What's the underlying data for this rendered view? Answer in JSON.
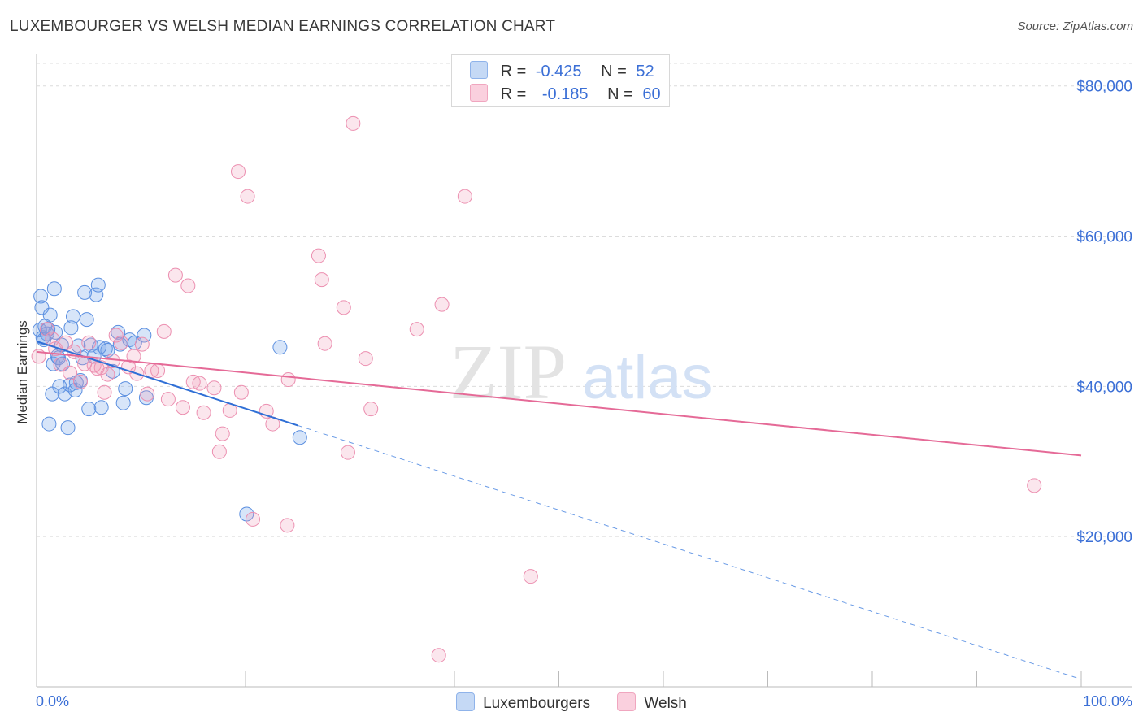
{
  "title": "LUXEMBOURGER VS WELSH MEDIAN EARNINGS CORRELATION CHART",
  "source": "Source: ZipAtlas.com",
  "watermark": {
    "zip": "ZIP",
    "atlas": "atlas"
  },
  "legend": {
    "rows": [
      {
        "r_label": "R =",
        "r_value": "-0.425",
        "n_label": "N =",
        "n_value": "52",
        "color": "#6fa0e8"
      },
      {
        "r_label": "R =",
        "r_value": "-0.185",
        "n_label": "N =",
        "n_value": "60",
        "color": "#f09ab6"
      }
    ]
  },
  "bottom_legend": [
    "Luxembourgers",
    "Welsh"
  ],
  "chart_data": {
    "type": "scatter",
    "title": "LUXEMBOURGER VS WELSH MEDIAN EARNINGS CORRELATION CHART",
    "ylabel": "Median Earnings",
    "xlabel": "",
    "x_tick_labels": [
      "0.0%",
      "100.0%"
    ],
    "y_tick_labels": [
      "$20,000",
      "$40,000",
      "$60,000",
      "$80,000"
    ],
    "xlim": [
      0,
      100
    ],
    "ylim": [
      0,
      83000
    ],
    "grid": true,
    "series": [
      {
        "name": "Luxembourgers",
        "color": "#6fa0e8",
        "trend": {
          "x": [
            0,
            25
          ],
          "y": [
            46000,
            34800
          ],
          "dashed_to": [
            100,
            1000
          ]
        },
        "points": [
          [
            0.3,
            47500
          ],
          [
            0.4,
            52000
          ],
          [
            0.5,
            50500
          ],
          [
            0.6,
            46500
          ],
          [
            0.8,
            48000
          ],
          [
            1.0,
            47000
          ],
          [
            1.2,
            35000
          ],
          [
            1.3,
            49500
          ],
          [
            1.5,
            39000
          ],
          [
            1.6,
            43000
          ],
          [
            1.7,
            53000
          ],
          [
            1.8,
            47200
          ],
          [
            2.0,
            44000
          ],
          [
            2.2,
            40000
          ],
          [
            2.4,
            45500
          ],
          [
            2.5,
            43000
          ],
          [
            2.7,
            39000
          ],
          [
            3.0,
            34500
          ],
          [
            3.2,
            40200
          ],
          [
            3.3,
            47800
          ],
          [
            3.5,
            49300
          ],
          [
            3.7,
            39500
          ],
          [
            4.0,
            45400
          ],
          [
            4.2,
            40800
          ],
          [
            4.4,
            43800
          ],
          [
            4.6,
            52500
          ],
          [
            4.8,
            48900
          ],
          [
            5.0,
            37000
          ],
          [
            5.2,
            45500
          ],
          [
            5.5,
            44000
          ],
          [
            5.7,
            52200
          ],
          [
            5.9,
            53500
          ],
          [
            6.2,
            37200
          ],
          [
            6.6,
            45000
          ],
          [
            6.8,
            44800
          ],
          [
            7.3,
            42000
          ],
          [
            7.8,
            47200
          ],
          [
            8.0,
            45600
          ],
          [
            8.3,
            37800
          ],
          [
            8.5,
            39700
          ],
          [
            8.9,
            46200
          ],
          [
            9.4,
            45800
          ],
          [
            10.3,
            46800
          ],
          [
            10.5,
            38500
          ],
          [
            20.1,
            23000
          ],
          [
            23.3,
            45200
          ],
          [
            25.2,
            33200
          ],
          [
            0.7,
            46200
          ],
          [
            1.1,
            47600
          ],
          [
            2.1,
            43800
          ],
          [
            3.8,
            40500
          ],
          [
            6.0,
            45200
          ]
        ]
      },
      {
        "name": "Welsh",
        "color": "#f09ab6",
        "trend": {
          "x": [
            0,
            100
          ],
          "y": [
            44600,
            30800
          ]
        },
        "points": [
          [
            0.2,
            44000
          ],
          [
            1.0,
            47600
          ],
          [
            1.5,
            46300
          ],
          [
            1.8,
            45000
          ],
          [
            2.3,
            42900
          ],
          [
            2.8,
            45800
          ],
          [
            3.2,
            41800
          ],
          [
            3.6,
            44600
          ],
          [
            4.2,
            40600
          ],
          [
            4.6,
            43000
          ],
          [
            5.0,
            45800
          ],
          [
            5.5,
            42800
          ],
          [
            6.2,
            42500
          ],
          [
            6.5,
            39200
          ],
          [
            6.8,
            41600
          ],
          [
            7.3,
            43400
          ],
          [
            7.6,
            46800
          ],
          [
            8.1,
            45800
          ],
          [
            8.8,
            42600
          ],
          [
            9.3,
            44000
          ],
          [
            9.6,
            41700
          ],
          [
            10.1,
            45600
          ],
          [
            10.6,
            39000
          ],
          [
            11.0,
            42100
          ],
          [
            11.6,
            42100
          ],
          [
            12.2,
            47300
          ],
          [
            12.6,
            38300
          ],
          [
            13.3,
            54800
          ],
          [
            14.0,
            37200
          ],
          [
            14.5,
            53400
          ],
          [
            15.0,
            40600
          ],
          [
            15.6,
            40400
          ],
          [
            16.0,
            36500
          ],
          [
            17.0,
            39800
          ],
          [
            17.5,
            31300
          ],
          [
            17.8,
            33700
          ],
          [
            18.5,
            36800
          ],
          [
            19.3,
            68600
          ],
          [
            19.6,
            39200
          ],
          [
            20.2,
            65300
          ],
          [
            20.7,
            22300
          ],
          [
            22.0,
            36700
          ],
          [
            22.6,
            35000
          ],
          [
            24.0,
            21500
          ],
          [
            24.1,
            40900
          ],
          [
            27.0,
            57400
          ],
          [
            27.3,
            54200
          ],
          [
            27.6,
            45700
          ],
          [
            29.4,
            50500
          ],
          [
            29.8,
            31200
          ],
          [
            30.3,
            75000
          ],
          [
            31.5,
            43700
          ],
          [
            32.0,
            37000
          ],
          [
            36.4,
            47600
          ],
          [
            38.5,
            4200
          ],
          [
            38.8,
            50900
          ],
          [
            41.0,
            65300
          ],
          [
            47.3,
            14700
          ],
          [
            95.5,
            26800
          ],
          [
            5.8,
            42400
          ]
        ]
      }
    ]
  }
}
